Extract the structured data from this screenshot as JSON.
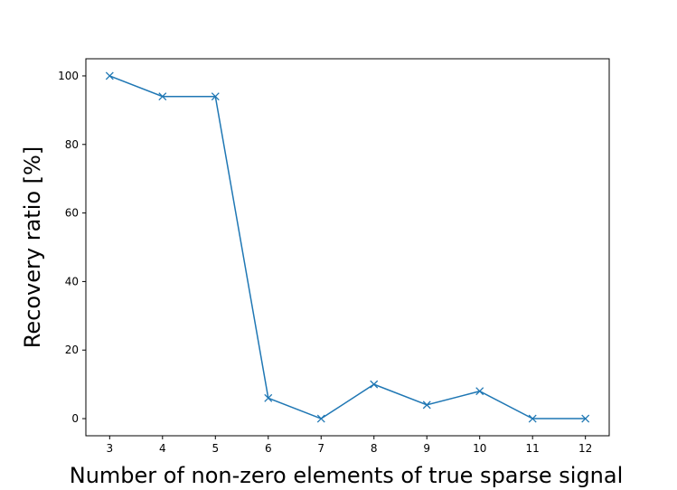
{
  "chart_data": {
    "type": "line",
    "title": "",
    "xlabel": "Number of non-zero elements of true sparse signal",
    "ylabel": "Recovery ratio [%]",
    "x": [
      3,
      4,
      5,
      6,
      7,
      8,
      9,
      10,
      11,
      12
    ],
    "series": [
      {
        "values": [
          100,
          94,
          94,
          6,
          0,
          10,
          4,
          8,
          0,
          0
        ],
        "color": "#1f77b4",
        "marker": "x"
      }
    ],
    "xlim": [
      2.55,
      12.45
    ],
    "ylim": [
      -5,
      105
    ],
    "xticks": [
      "3",
      "4",
      "5",
      "6",
      "7",
      "8",
      "9",
      "10",
      "11",
      "12"
    ],
    "yticks": [
      "0",
      "20",
      "40",
      "60",
      "80",
      "100"
    ],
    "grid": false,
    "legend": "none"
  }
}
